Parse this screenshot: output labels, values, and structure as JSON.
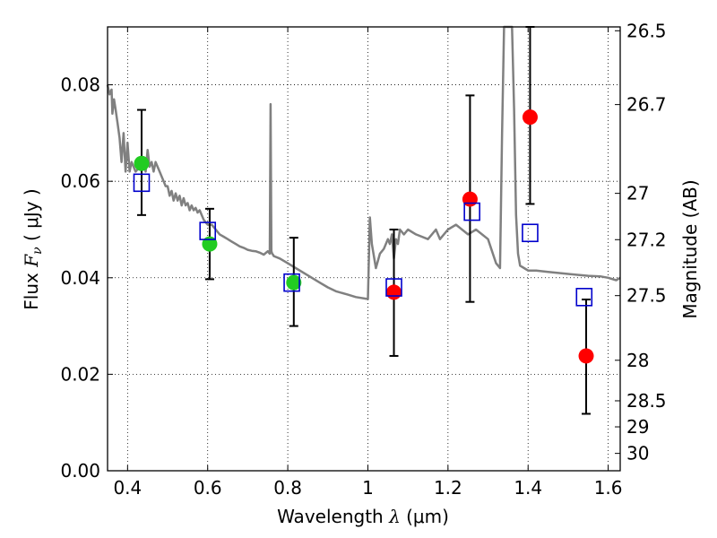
{
  "chart_data": {
    "type": "scatter",
    "xlabel": {
      "prefix": "Wavelength  ",
      "symbol": "λ",
      "units": " (μm)"
    },
    "ylabel": {
      "prefix": "Flux  ",
      "symbol": "F",
      "subscript": "ν",
      "units": "  ( μJy )"
    },
    "y2label": "Magnitude (AB)",
    "xlim": [
      0.35,
      1.63
    ],
    "ylim": [
      0.0,
      0.092
    ],
    "grid": true,
    "x_ticks": [
      {
        "value": 0.4,
        "label": "0.4"
      },
      {
        "value": 0.6,
        "label": "0.6"
      },
      {
        "value": 0.8,
        "label": "0.8"
      },
      {
        "value": 1.0,
        "label": "1"
      },
      {
        "value": 1.2,
        "label": "1.2"
      },
      {
        "value": 1.4,
        "label": "1.4"
      },
      {
        "value": 1.6,
        "label": "1.6"
      }
    ],
    "y_ticks": [
      {
        "value": 0.0,
        "label": "0.00"
      },
      {
        "value": 0.02,
        "label": "0.02"
      },
      {
        "value": 0.04,
        "label": "0.04"
      },
      {
        "value": 0.06,
        "label": "0.06"
      },
      {
        "value": 0.08,
        "label": "0.08"
      }
    ],
    "y2_ticks": [
      {
        "label": "26.5",
        "flux": 0.0912
      },
      {
        "label": "26.7",
        "flux": 0.0759
      },
      {
        "label": "27",
        "flux": 0.0575
      },
      {
        "label": "27.2",
        "flux": 0.0479
      },
      {
        "label": "27.5",
        "flux": 0.0363
      },
      {
        "label": "28",
        "flux": 0.0229
      },
      {
        "label": "28.5",
        "flux": 0.0145
      },
      {
        "label": "29",
        "flux": 0.0091
      },
      {
        "label": "30",
        "flux": 0.0036
      }
    ],
    "colors": {
      "model": "#808080",
      "optical": "#22cc22",
      "nir": "#ff0000",
      "model_flux": "#0000cc",
      "errorbar": "#000000"
    },
    "model_sed": {
      "x": [
        0.35,
        0.355,
        0.36,
        0.362,
        0.366,
        0.37,
        0.375,
        0.38,
        0.385,
        0.39,
        0.395,
        0.4,
        0.405,
        0.41,
        0.42,
        0.43,
        0.44,
        0.445,
        0.45,
        0.455,
        0.46,
        0.465,
        0.47,
        0.48,
        0.49,
        0.495,
        0.5,
        0.505,
        0.51,
        0.515,
        0.52,
        0.525,
        0.53,
        0.535,
        0.54,
        0.545,
        0.55,
        0.555,
        0.56,
        0.565,
        0.57,
        0.575,
        0.58,
        0.59,
        0.6,
        0.61,
        0.62,
        0.63,
        0.64,
        0.65,
        0.66,
        0.67,
        0.68,
        0.69,
        0.7,
        0.71,
        0.72,
        0.73,
        0.74,
        0.75,
        0.755,
        0.757,
        0.759,
        0.761,
        0.763,
        0.765,
        0.78,
        0.8,
        0.82,
        0.85,
        0.88,
        0.9,
        0.92,
        0.95,
        0.97,
        1.0,
        1.005,
        1.01,
        1.02,
        1.03,
        1.04,
        1.05,
        1.055,
        1.06,
        1.065,
        1.07,
        1.075,
        1.08,
        1.09,
        1.1,
        1.12,
        1.15,
        1.17,
        1.18,
        1.2,
        1.22,
        1.25,
        1.27,
        1.3,
        1.32,
        1.33,
        1.335,
        1.34,
        1.35,
        1.36,
        1.365,
        1.37,
        1.375,
        1.38,
        1.39,
        1.4,
        1.42,
        1.45,
        1.5,
        1.55,
        1.58,
        1.6,
        1.62,
        1.63
      ],
      "y": [
        0.08,
        0.078,
        0.079,
        0.074,
        0.077,
        0.075,
        0.072,
        0.069,
        0.064,
        0.07,
        0.062,
        0.068,
        0.062,
        0.064,
        0.062,
        0.063,
        0.065,
        0.062,
        0.0665,
        0.063,
        0.064,
        0.062,
        0.064,
        0.062,
        0.06,
        0.059,
        0.059,
        0.057,
        0.058,
        0.056,
        0.0575,
        0.056,
        0.057,
        0.055,
        0.0565,
        0.055,
        0.0555,
        0.054,
        0.055,
        0.054,
        0.0545,
        0.0535,
        0.054,
        0.052,
        0.051,
        0.051,
        0.05,
        0.049,
        0.0485,
        0.048,
        0.0475,
        0.047,
        0.0465,
        0.0462,
        0.0458,
        0.0456,
        0.0455,
        0.0452,
        0.0448,
        0.0455,
        0.045,
        0.076,
        0.0455,
        0.045,
        0.0448,
        0.0445,
        0.044,
        0.043,
        0.042,
        0.0405,
        0.039,
        0.038,
        0.0372,
        0.0365,
        0.036,
        0.0356,
        0.0525,
        0.047,
        0.042,
        0.045,
        0.046,
        0.048,
        0.047,
        0.049,
        0.044,
        0.048,
        0.047,
        0.05,
        0.049,
        0.05,
        0.049,
        0.048,
        0.05,
        0.048,
        0.05,
        0.051,
        0.049,
        0.05,
        0.048,
        0.043,
        0.042,
        0.07,
        0.092,
        0.092,
        0.092,
        0.075,
        0.053,
        0.045,
        0.0425,
        0.042,
        0.0415,
        0.0415,
        0.0412,
        0.0408,
        0.0404,
        0.0403,
        0.04,
        0.0395,
        0.04
      ]
    },
    "series": [
      {
        "key": "optical",
        "x": [
          0.435,
          0.605,
          0.815
        ],
        "y": [
          0.0637,
          0.047,
          0.039
        ],
        "yerr_low": [
          0.053,
          0.0397,
          0.03
        ],
        "yerr_high": [
          0.0748,
          0.0543,
          0.0483
        ]
      },
      {
        "key": "nir",
        "x": [
          1.065,
          1.255,
          1.405,
          1.545
        ],
        "y": [
          0.037,
          0.0563,
          0.0733,
          0.0238
        ],
        "yerr_low": [
          0.0238,
          0.035,
          0.0553,
          0.0118
        ],
        "yerr_high": [
          0.05,
          0.0778,
          0.092,
          0.0355
        ]
      },
      {
        "key": "model_flux",
        "x": [
          0.435,
          0.6,
          0.81,
          1.065,
          1.26,
          1.405,
          1.54
        ],
        "y": [
          0.0597,
          0.0497,
          0.039,
          0.038,
          0.0537,
          0.0493,
          0.036
        ]
      }
    ]
  }
}
